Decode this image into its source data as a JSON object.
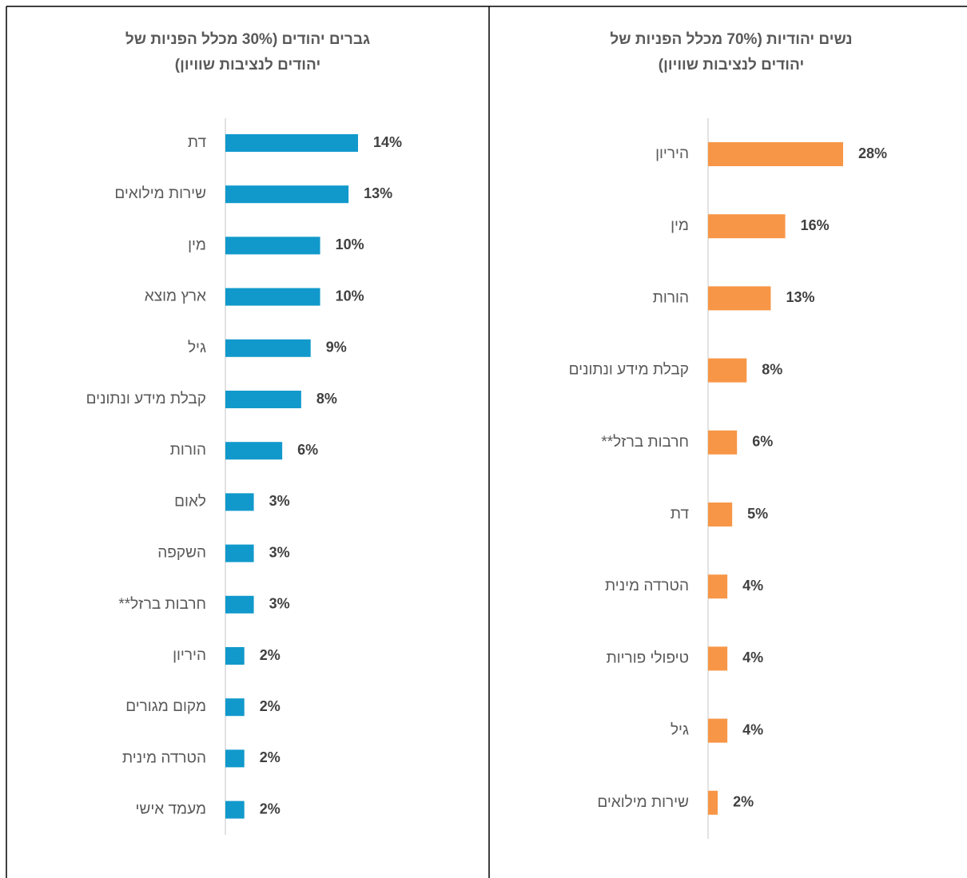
{
  "chart_data": [
    {
      "type": "barh",
      "title": [
        "גברים יהודים (30% מכלל הפניות של",
        "יהודים לנציבות שוויון)"
      ],
      "categories": [
        "דת",
        "שירות מילואים",
        "מין",
        "ארץ מוצא",
        "גיל",
        "קבלת מידע ונתונים",
        "הורות",
        "לאום",
        "השקפה",
        "חרבות ברזל**",
        "היריון",
        "מקום מגורים",
        "הטרדה מינית",
        "מעמד אישי"
      ],
      "values": [
        14,
        13,
        10,
        10,
        9,
        8,
        6,
        3,
        3,
        3,
        2,
        2,
        2,
        2
      ],
      "value_labels": [
        "14%",
        "13%",
        "10%",
        "10%",
        "9%",
        "8%",
        "6%",
        "3%",
        "3%",
        "3%",
        "2%",
        "2%",
        "2%",
        "2%"
      ],
      "color": "#1199cc",
      "xlim": [
        0,
        14
      ]
    },
    {
      "type": "barh",
      "title": [
        "נשים יהודיות (70% מכלל הפניות של",
        "יהודים לנציבות שוויון)"
      ],
      "categories": [
        "היריון",
        "מין",
        "הורות",
        "קבלת מידע ונתונים",
        "חרבות ברזל**",
        "דת",
        "הטרדה מינית",
        "טיפולי פוריות",
        "גיל",
        "שירות מילואים"
      ],
      "values": [
        28,
        16,
        13,
        8,
        6,
        5,
        4,
        4,
        4,
        2
      ],
      "value_labels": [
        "28%",
        "16%",
        "13%",
        "8%",
        "6%",
        "5%",
        "4%",
        "4%",
        "4%",
        "2%"
      ],
      "color": "#f79646",
      "xlim": [
        0,
        28
      ]
    }
  ]
}
